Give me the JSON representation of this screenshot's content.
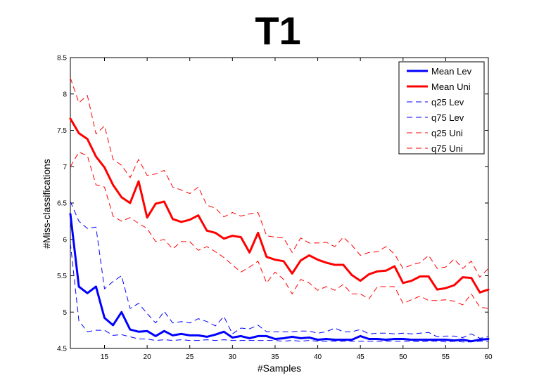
{
  "chart_data": {
    "type": "line",
    "title": "T1",
    "xlabel": "#Samples",
    "ylabel": "#Miss-classifications",
    "xlim": [
      11,
      60
    ],
    "ylim": [
      4.5,
      8.5
    ],
    "xticks": [
      15,
      20,
      25,
      30,
      35,
      40,
      45,
      50,
      55,
      60
    ],
    "yticks": [
      4.5,
      5,
      5.5,
      6,
      6.5,
      7,
      7.5,
      8,
      8.5
    ],
    "ytick_labels": [
      "4.5",
      "5",
      "5.5",
      "6",
      "6.5",
      "7",
      "7.5",
      "8",
      "8.5"
    ],
    "grid": false,
    "legend_position": "top-right",
    "x": [
      11,
      12,
      13,
      14,
      15,
      16,
      17,
      18,
      19,
      20,
      21,
      22,
      23,
      24,
      25,
      26,
      27,
      28,
      29,
      30,
      31,
      32,
      33,
      34,
      35,
      36,
      37,
      38,
      39,
      40,
      41,
      42,
      43,
      44,
      45,
      46,
      47,
      48,
      49,
      50,
      51,
      52,
      53,
      54,
      55,
      56,
      57,
      58,
      59,
      60
    ],
    "series": [
      {
        "name": "Mean Lev",
        "color": "#0000ff",
        "style": "solid",
        "width": 3,
        "values": [
          6.35,
          5.35,
          5.26,
          5.35,
          4.92,
          4.82,
          5.0,
          4.76,
          4.73,
          4.74,
          4.67,
          4.74,
          4.68,
          4.7,
          4.68,
          4.68,
          4.66,
          4.69,
          4.73,
          4.65,
          4.67,
          4.64,
          4.67,
          4.67,
          4.63,
          4.64,
          4.66,
          4.64,
          4.65,
          4.62,
          4.63,
          4.62,
          4.62,
          4.62,
          4.67,
          4.63,
          4.63,
          4.62,
          4.63,
          4.63,
          4.62,
          4.62,
          4.62,
          4.62,
          4.62,
          4.61,
          4.62,
          4.6,
          4.62,
          4.63
        ]
      },
      {
        "name": "Mean Uni",
        "color": "#ff0000",
        "style": "solid",
        "width": 3,
        "values": [
          7.66,
          7.46,
          7.38,
          7.14,
          6.99,
          6.75,
          6.58,
          6.5,
          6.8,
          6.3,
          6.49,
          6.52,
          6.28,
          6.24,
          6.27,
          6.33,
          6.12,
          6.09,
          6.01,
          6.05,
          6.03,
          5.82,
          6.09,
          5.76,
          5.72,
          5.7,
          5.53,
          5.71,
          5.78,
          5.72,
          5.68,
          5.65,
          5.65,
          5.51,
          5.43,
          5.52,
          5.56,
          5.57,
          5.63,
          5.4,
          5.43,
          5.49,
          5.49,
          5.31,
          5.33,
          5.37,
          5.48,
          5.47,
          5.27,
          5.31
        ]
      },
      {
        "name": "q25 Lev",
        "color": "#0000ff",
        "style": "dashed",
        "width": 1,
        "values": [
          5.95,
          4.88,
          4.73,
          4.75,
          4.75,
          4.68,
          4.69,
          4.66,
          4.63,
          4.63,
          4.61,
          4.62,
          4.61,
          4.62,
          4.61,
          4.61,
          4.62,
          4.61,
          4.62,
          4.61,
          4.61,
          4.61,
          4.61,
          4.61,
          4.61,
          4.6,
          4.61,
          4.6,
          4.61,
          4.6,
          4.6,
          4.6,
          4.6,
          4.6,
          4.6,
          4.6,
          4.6,
          4.6,
          4.6,
          4.6,
          4.6,
          4.59,
          4.6,
          4.6,
          4.59,
          4.6,
          4.59,
          4.59,
          4.6,
          4.6
        ]
      },
      {
        "name": "q75 Lev",
        "color": "#0000ff",
        "style": "dashed",
        "width": 1,
        "values": [
          6.52,
          6.25,
          6.15,
          6.17,
          5.32,
          5.42,
          5.5,
          5.05,
          5.12,
          4.98,
          4.85,
          5.01,
          4.85,
          4.87,
          4.85,
          4.91,
          4.87,
          4.81,
          4.94,
          4.7,
          4.78,
          4.77,
          4.82,
          4.73,
          4.73,
          4.73,
          4.73,
          4.74,
          4.74,
          4.71,
          4.73,
          4.78,
          4.73,
          4.73,
          4.76,
          4.7,
          4.71,
          4.71,
          4.7,
          4.71,
          4.7,
          4.71,
          4.72,
          4.66,
          4.67,
          4.67,
          4.65,
          4.7,
          4.64,
          4.66
        ]
      },
      {
        "name": "q25 Uni",
        "color": "#ff0000",
        "style": "dashed",
        "width": 1,
        "values": [
          7.0,
          7.2,
          7.15,
          6.75,
          6.72,
          6.32,
          6.25,
          6.3,
          6.22,
          6.15,
          5.97,
          6.0,
          5.87,
          5.97,
          5.97,
          5.85,
          5.9,
          5.83,
          5.75,
          5.65,
          5.55,
          5.62,
          5.7,
          5.4,
          5.55,
          5.45,
          5.25,
          5.45,
          5.4,
          5.3,
          5.35,
          5.3,
          5.38,
          5.25,
          5.25,
          5.18,
          5.35,
          5.35,
          5.35,
          5.12,
          5.17,
          5.22,
          5.16,
          5.16,
          5.17,
          5.15,
          5.1,
          5.25,
          5.07,
          5.05
        ]
      },
      {
        "name": "q75 Uni",
        "color": "#ff0000",
        "style": "dashed",
        "width": 1,
        "values": [
          8.22,
          7.88,
          7.98,
          7.45,
          7.56,
          7.1,
          7.02,
          6.85,
          7.1,
          6.88,
          6.9,
          6.95,
          6.72,
          6.68,
          6.63,
          6.72,
          6.47,
          6.43,
          6.31,
          6.37,
          6.32,
          6.35,
          6.37,
          6.05,
          6.03,
          6.02,
          5.82,
          6.02,
          5.95,
          5.95,
          5.96,
          5.9,
          6.03,
          5.92,
          5.78,
          5.82,
          5.83,
          5.9,
          5.8,
          5.6,
          5.65,
          5.68,
          5.78,
          5.6,
          5.62,
          5.73,
          5.6,
          5.7,
          5.48,
          5.6
        ]
      }
    ]
  }
}
